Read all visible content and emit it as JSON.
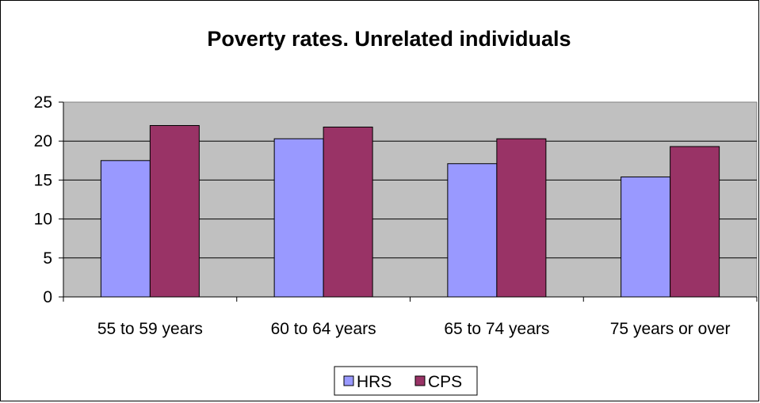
{
  "chart_data": {
    "type": "bar",
    "title": "Poverty rates.  Unrelated individuals",
    "xlabel": "",
    "ylabel": "",
    "categories": [
      "55 to 59 years",
      "60 to 64 years",
      "65 to 74 years",
      "75 years or over"
    ],
    "series": [
      {
        "name": "HRS",
        "values": [
          17.5,
          20.3,
          17.1,
          15.4
        ],
        "color": "#9999ff"
      },
      {
        "name": "CPS",
        "values": [
          22.0,
          21.8,
          20.3,
          19.3
        ],
        "color": "#993366"
      }
    ],
    "ylim": [
      0,
      25
    ],
    "yticks": [
      "0",
      "5",
      "10",
      "15",
      "20",
      "25"
    ],
    "grid": true,
    "plot_background": "#c0c0c0",
    "legend_position": "bottom"
  }
}
